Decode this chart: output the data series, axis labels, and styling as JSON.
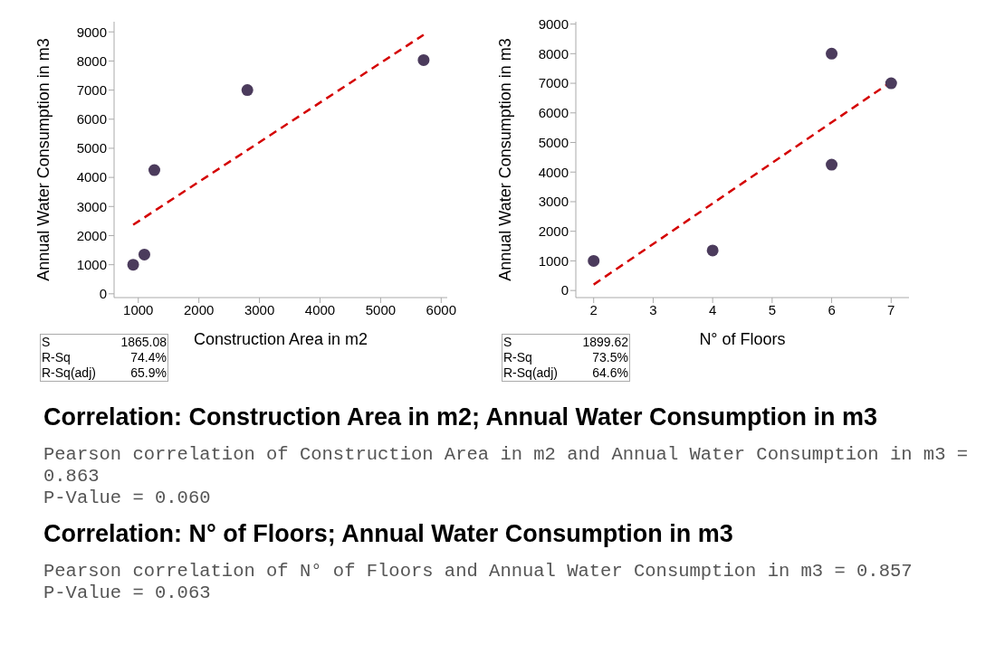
{
  "chart_data": [
    {
      "type": "scatter",
      "xlabel": "Construction Area in m2",
      "ylabel": "Annual Water Consumption in m3",
      "xlim": [
        600,
        6100
      ],
      "xticks": [
        1000,
        2000,
        3000,
        4000,
        5000,
        6000
      ],
      "ylim": [
        -130,
        9350
      ],
      "yticks": [
        0,
        1000,
        2000,
        3000,
        4000,
        5000,
        6000,
        7000,
        8000,
        9000
      ],
      "series": [
        {
          "type": "scatter",
          "color": "#4b3b5c",
          "marker": "circle",
          "x": [
            915,
            1100,
            1265,
            2800,
            5710
          ],
          "values": [
            1000,
            1350,
            4250,
            7000,
            8030
          ]
        },
        {
          "type": "line",
          "color": "#d40000",
          "line_style": "dashed",
          "x": [
            915,
            5710
          ],
          "values": [
            2370,
            8900
          ]
        }
      ],
      "annotations": [
        "S 1865.08",
        "R-Sq 74.4%",
        "R-Sq(adj) 65.9%"
      ]
    },
    {
      "type": "scatter",
      "xlabel": "N° of Floors",
      "ylabel": "Annual Water Consumption in m3",
      "xlim": [
        1.7,
        7.3
      ],
      "xticks": [
        2,
        3,
        4,
        5,
        6,
        7
      ],
      "ylim": [
        -240,
        9080
      ],
      "yticks": [
        0,
        1000,
        2000,
        3000,
        4000,
        5000,
        6000,
        7000,
        8000,
        9000
      ],
      "series": [
        {
          "type": "scatter",
          "color": "#4b3b5c",
          "marker": "circle",
          "x": [
            2,
            4,
            6,
            6,
            7
          ],
          "values": [
            1000,
            1350,
            8000,
            4250,
            7000
          ]
        },
        {
          "type": "line",
          "color": "#d40000",
          "line_style": "dashed",
          "x": [
            2,
            7
          ],
          "values": [
            200,
            7050
          ]
        }
      ],
      "annotations": [
        "S 1899.62",
        "R-Sq 73.5%",
        "R-Sq(adj) 64.6%"
      ]
    },
    {
      "type": "other",
      "title": "Correlation: Construction Area in m2; Annual Water Consumption in m3",
      "annotations": [
        "Pearson correlation of Construction Area in m2 and Annual Water Consumption in m3 = 0.863",
        "P-Value = 0.060"
      ]
    },
    {
      "type": "other",
      "title": "Correlation: N° of Floors; Annual Water Consumption in m3",
      "annotations": [
        "Pearson correlation of N° of Floors and Annual Water Consumption in m3 = 0.857",
        "P-Value = 0.063"
      ]
    }
  ]
}
